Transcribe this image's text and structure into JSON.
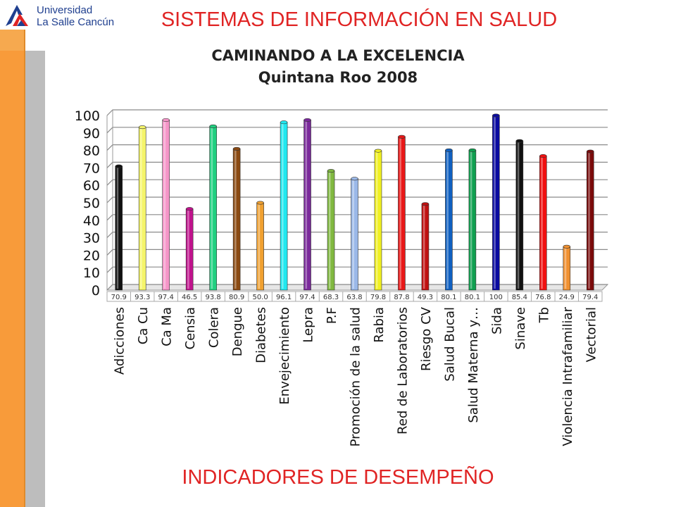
{
  "header": {
    "logo_line1": "Universidad",
    "logo_line2": "La Salle Cancún",
    "title": "SISTEMAS DE INFORMACIÓN EN SALUD"
  },
  "footer": {
    "title": "INDICADORES DE DESEMPEÑO"
  },
  "colors": {
    "accent_red": "#e02424",
    "stripe_orange": "#F89B3A",
    "stripe_gray": "#bdbdbd",
    "logo_blue": "#1f3f8f"
  },
  "chart_data": {
    "type": "bar",
    "title_line1": "CAMINANDO A LA EXCELENCIA",
    "title_line2": "Quintana Roo 2008",
    "xlabel": "",
    "ylabel": "",
    "ylim": [
      0,
      100
    ],
    "yticks": [
      0,
      10,
      20,
      30,
      40,
      50,
      60,
      70,
      80,
      90,
      100
    ],
    "grid": true,
    "legend": "none",
    "categories": [
      "Adicciones",
      "Ca Cu",
      "Ca Ma",
      "Censia",
      "Colera",
      "Dengue",
      "Diabetes",
      "Envejecimiento",
      "Lepra",
      "P.F",
      "Promoción de la salud",
      "Rabia",
      "Red de Laboratorios",
      "Riesgo CV",
      "Salud Bucal",
      "Salud Materna y…",
      "Sida",
      "Sinave",
      "Tb",
      "Violencia Intrafamiliar",
      "Vectorial"
    ],
    "values": [
      70.9,
      93.3,
      97.4,
      46.5,
      93.8,
      80.9,
      50.0,
      96.1,
      97.4,
      68.3,
      63.8,
      79.8,
      87.8,
      49.3,
      80.1,
      80.1,
      100,
      85.4,
      76.8,
      24.9,
      79.4
    ],
    "value_labels": [
      "70.9",
      "93.3",
      "97.4",
      "46.5",
      "93.8",
      "80.9",
      "50.0",
      "96.1",
      "97.4",
      "68.3",
      "63.8",
      "79.8",
      "87.8",
      "49.3",
      "80.1",
      "80.1",
      "100",
      "85.4",
      "76.8",
      "24.9",
      "79.4"
    ],
    "bar_colors": [
      "#111111",
      "#f5f56a",
      "#f595c8",
      "#c0128c",
      "#20d080",
      "#8b4a12",
      "#f0a030",
      "#20e8f0",
      "#7a2a9a",
      "#80b840",
      "#9ab8e8",
      "#f0f020",
      "#e81818",
      "#c01010",
      "#1060c0",
      "#10a050",
      "#0a0aa0",
      "#111111",
      "#f01010",
      "#f09030",
      "#7a0a0a"
    ]
  }
}
